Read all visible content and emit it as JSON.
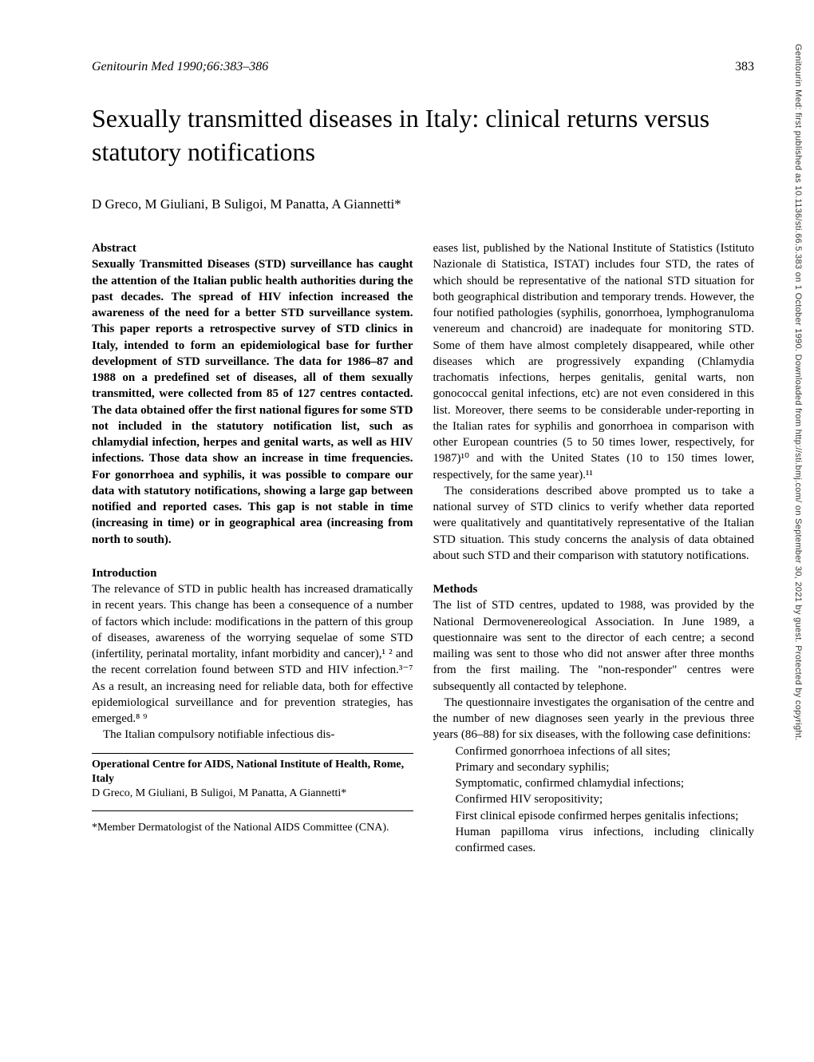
{
  "sidebar": {
    "text": "Genitourin Med: first published as 10.1136/sti.66.5.383 on 1 October 1990. Downloaded from http://sti.bmj.com/ on September 30, 2021 by guest. Protected by copyright."
  },
  "header": {
    "journal_ref": "Genitourin Med 1990;66:383–386",
    "page_number": "383"
  },
  "title": "Sexually transmitted diseases in Italy: clinical returns versus statutory notifications",
  "authors": "D Greco, M Giuliani, B Suligoi, M Panatta, A Giannetti*",
  "abstract": {
    "heading": "Abstract",
    "text": "Sexually Transmitted Diseases (STD) surveillance has caught the attention of the Italian public health authorities during the past decades. The spread of HIV infection increased the awareness of the need for a better STD surveillance system. This paper reports a retrospective survey of STD clinics in Italy, intended to form an epidemiological base for further development of STD surveillance. The data for 1986–87 and 1988 on a predefined set of diseases, all of them sexually transmitted, were collected from 85 of 127 centres contacted. The data obtained offer the first national figures for some STD not included in the statutory notification list, such as chlamydial infection, herpes and genital warts, as well as HIV infections. Those data show an increase in time frequencies. For gonorrhoea and syphilis, it was possible to compare our data with statutory notifications, showing a large gap between notified and reported cases. This gap is not stable in time (increasing in time) or in geographical area (increasing from north to south)."
  },
  "introduction": {
    "heading": "Introduction",
    "para1": "The relevance of STD in public health has increased dramatically in recent years. This change has been a consequence of a number of factors which include: modifications in the pattern of this group of diseases, awareness of the worrying sequelae of some STD (infertility, perinatal mortality, infant morbidity and cancer),¹ ² and the recent correlation found between STD and HIV infection.³⁻⁷ As a result, an increasing need for reliable data, both for effective epidemiological surveillance and for prevention strategies, has emerged.⁸ ⁹",
    "para2": "The Italian compulsory notifiable infectious dis-"
  },
  "affiliation": {
    "title": "Operational Centre for AIDS, National Institute of Health, Rome, Italy",
    "authors": "D Greco, M Giuliani, B Suligoi, M Panatta, A Giannetti*"
  },
  "footnote": "*Member Dermatologist of the National AIDS Committee (CNA).",
  "right_col": {
    "para1": "eases list, published by the National Institute of Statistics (Istituto Nazionale di Statistica, ISTAT) includes four STD, the rates of which should be representative of the national STD situation for both geographical distribution and temporary trends. However, the four notified pathologies (syphilis, gonorrhoea, lymphogranuloma venereum and chancroid) are inadequate for monitoring STD. Some of them have almost completely disappeared, while other diseases which are progressively expanding (Chlamydia trachomatis infections, herpes genitalis, genital warts, non gonococcal genital infections, etc) are not even considered in this list. Moreover, there seems to be considerable under-reporting in the Italian rates for syphilis and gonorrhoea in comparison with other European countries (5 to 50 times lower, respectively, for 1987)¹⁰ and with the United States (10 to 150 times lower, respectively, for the same year).¹¹",
    "para2": "The considerations described above prompted us to take a national survey of STD clinics to verify whether data reported were qualitatively and quantitatively representative of the Italian STD situation. This study concerns the analysis of data obtained about such STD and their comparison with statutory notifications."
  },
  "methods": {
    "heading": "Methods",
    "para1": "The list of STD centres, updated to 1988, was provided by the National Dermovenereological Association. In June 1989, a questionnaire was sent to the director of each centre; a second mailing was sent to those who did not answer after three months from the first mailing. The \"non-responder\" centres were subsequently all contacted by telephone.",
    "para2": "The questionnaire investigates the organisation of the centre and the number of new diagnoses seen yearly in the previous three years (86–88) for six diseases, with the following case definitions:",
    "list_items": {
      "item1": "Confirmed gonorrhoea infections of all sites;",
      "item2": "Primary and secondary syphilis;",
      "item3": "Symptomatic, confirmed chlamydial infections;",
      "item4": "Confirmed HIV seropositivity;",
      "item5": "First clinical episode confirmed herpes genitalis infections;",
      "item6": "Human papilloma virus infections, including clinically confirmed cases."
    }
  }
}
